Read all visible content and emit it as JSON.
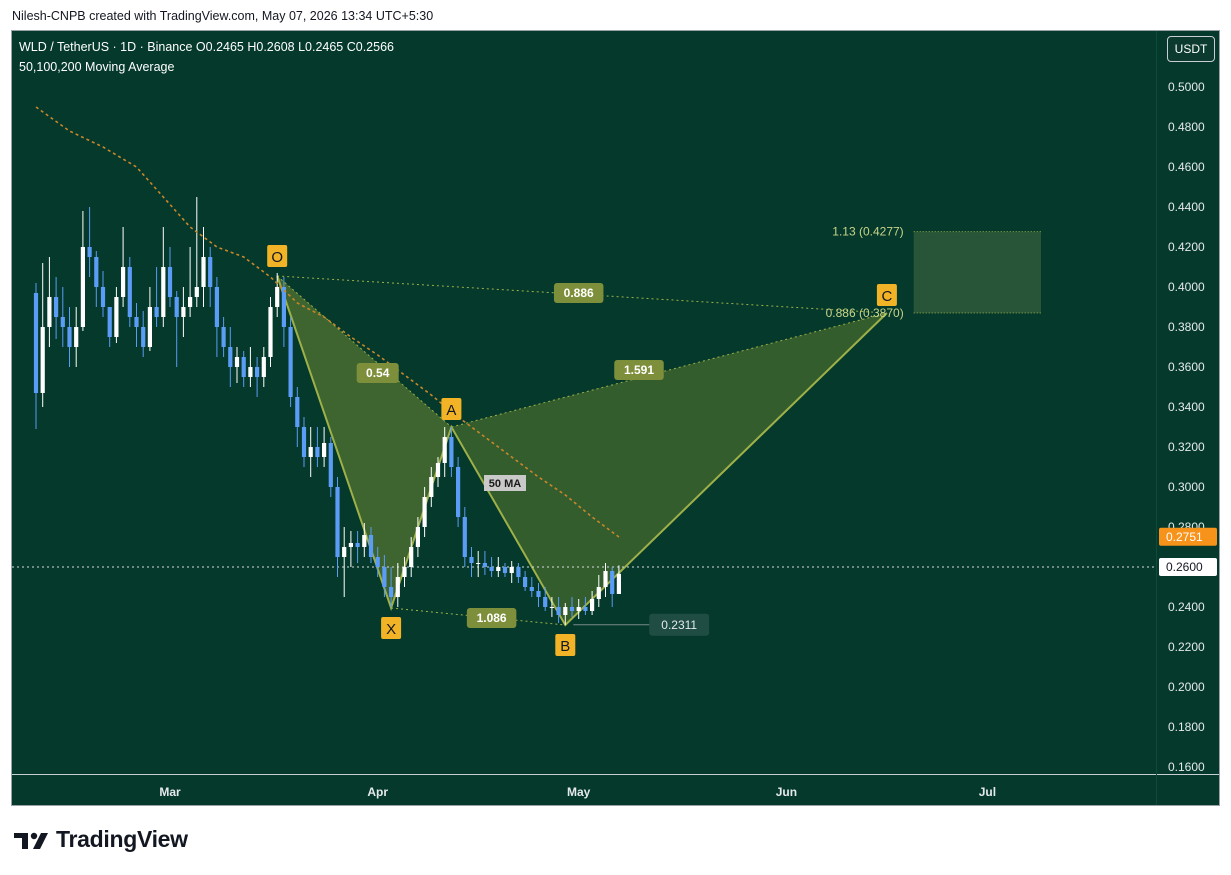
{
  "header": {
    "credit": "Nilesh-CNPB created with TradingView.com, May 07, 2026 13:34 UTC+5:30"
  },
  "legend": {
    "symbol_line": "WLD / TetherUS · 1D · Binance  O0.2465  H0.2608  L0.2465  C0.2566",
    "ma_line": "50,100,200 Moving Average"
  },
  "currency_button": "USDT",
  "brand": {
    "name": "TradingView",
    "logo_icon": "tradingview-logo-icon"
  },
  "colors": {
    "background": "#04392b",
    "up_candle": "#ffffff",
    "down_candle": "#5b9cf6",
    "ma50": "#c8862a",
    "pattern_line": "#9eb048",
    "pattern_fill": "#6f8a33",
    "label_fill": "#7d8f3a",
    "point_label_fill": "#f2b426",
    "price_tag_orange": "#f7931a"
  },
  "chart_data": {
    "type": "candlestick",
    "title": "WLD / TetherUS · 1D · Binance",
    "ylim": [
      0.155,
      0.5
    ],
    "y_ticks": [
      "0.5000",
      "0.4800",
      "0.4600",
      "0.4400",
      "0.4200",
      "0.4000",
      "0.3800",
      "0.3600",
      "0.3400",
      "0.3200",
      "0.3000",
      "0.2800",
      "0.2600",
      "0.2400",
      "0.2200",
      "0.2000",
      "0.1800",
      "0.1600"
    ],
    "x_ticks": [
      {
        "label": "Mar",
        "date": "2026-03-01"
      },
      {
        "label": "Apr",
        "date": "2026-04-01"
      },
      {
        "label": "May",
        "date": "2026-05-01"
      },
      {
        "label": "Jun",
        "date": "2026-06-01"
      },
      {
        "label": "Jul",
        "date": "2026-07-01"
      }
    ],
    "price_tags": [
      {
        "value": 0.2751,
        "label": "0.2751",
        "style": "orange"
      },
      {
        "value": 0.26,
        "label": "0.2600",
        "style": "white"
      }
    ],
    "current_price_line": 0.26,
    "candles_note": "approximate daily OHLC read from the chart",
    "candles": [
      [
        "2026-02-09",
        0.397,
        0.402,
        0.329,
        0.347
      ],
      [
        "2026-02-10",
        0.347,
        0.412,
        0.34,
        0.38
      ],
      [
        "2026-02-11",
        0.38,
        0.415,
        0.37,
        0.395
      ],
      [
        "2026-02-12",
        0.395,
        0.405,
        0.374,
        0.385
      ],
      [
        "2026-02-13",
        0.385,
        0.4,
        0.37,
        0.38
      ],
      [
        "2026-02-14",
        0.38,
        0.39,
        0.36,
        0.37
      ],
      [
        "2026-02-15",
        0.37,
        0.39,
        0.36,
        0.38
      ],
      [
        "2026-02-16",
        0.38,
        0.438,
        0.378,
        0.42
      ],
      [
        "2026-02-17",
        0.42,
        0.44,
        0.405,
        0.415
      ],
      [
        "2026-02-18",
        0.415,
        0.418,
        0.39,
        0.4
      ],
      [
        "2026-02-19",
        0.4,
        0.408,
        0.385,
        0.39
      ],
      [
        "2026-02-20",
        0.39,
        0.39,
        0.37,
        0.375
      ],
      [
        "2026-02-21",
        0.375,
        0.4,
        0.372,
        0.395
      ],
      [
        "2026-02-22",
        0.395,
        0.43,
        0.39,
        0.41
      ],
      [
        "2026-02-23",
        0.41,
        0.415,
        0.38,
        0.385
      ],
      [
        "2026-02-24",
        0.385,
        0.392,
        0.37,
        0.38
      ],
      [
        "2026-02-25",
        0.38,
        0.388,
        0.365,
        0.37
      ],
      [
        "2026-02-26",
        0.37,
        0.4,
        0.368,
        0.39
      ],
      [
        "2026-02-27",
        0.39,
        0.41,
        0.38,
        0.385
      ],
      [
        "2026-02-28",
        0.385,
        0.43,
        0.38,
        0.41
      ],
      [
        "2026-03-01",
        0.41,
        0.42,
        0.39,
        0.395
      ],
      [
        "2026-03-02",
        0.395,
        0.398,
        0.36,
        0.385
      ],
      [
        "2026-03-03",
        0.385,
        0.4,
        0.375,
        0.39
      ],
      [
        "2026-03-04",
        0.39,
        0.42,
        0.385,
        0.395
      ],
      [
        "2026-03-05",
        0.395,
        0.445,
        0.39,
        0.4
      ],
      [
        "2026-03-06",
        0.4,
        0.43,
        0.39,
        0.415
      ],
      [
        "2026-03-07",
        0.415,
        0.42,
        0.39,
        0.4
      ],
      [
        "2026-03-08",
        0.4,
        0.405,
        0.365,
        0.38
      ],
      [
        "2026-03-09",
        0.38,
        0.385,
        0.365,
        0.37
      ],
      [
        "2026-03-10",
        0.37,
        0.38,
        0.35,
        0.36
      ],
      [
        "2026-03-11",
        0.36,
        0.37,
        0.352,
        0.365
      ],
      [
        "2026-03-12",
        0.365,
        0.368,
        0.35,
        0.355
      ],
      [
        "2026-03-13",
        0.355,
        0.37,
        0.35,
        0.36
      ],
      [
        "2026-03-14",
        0.36,
        0.365,
        0.345,
        0.355
      ],
      [
        "2026-03-15",
        0.355,
        0.37,
        0.35,
        0.365
      ],
      [
        "2026-03-16",
        0.365,
        0.395,
        0.36,
        0.39
      ],
      [
        "2026-03-17",
        0.39,
        0.407,
        0.385,
        0.4
      ],
      [
        "2026-03-18",
        0.4,
        0.405,
        0.37,
        0.38
      ],
      [
        "2026-03-19",
        0.38,
        0.385,
        0.34,
        0.345
      ],
      [
        "2026-03-20",
        0.345,
        0.35,
        0.32,
        0.33
      ],
      [
        "2026-03-21",
        0.33,
        0.335,
        0.31,
        0.315
      ],
      [
        "2026-03-22",
        0.315,
        0.33,
        0.305,
        0.32
      ],
      [
        "2026-03-23",
        0.32,
        0.33,
        0.31,
        0.315
      ],
      [
        "2026-03-24",
        0.315,
        0.33,
        0.31,
        0.322
      ],
      [
        "2026-03-25",
        0.322,
        0.325,
        0.295,
        0.3
      ],
      [
        "2026-03-26",
        0.3,
        0.305,
        0.255,
        0.265
      ],
      [
        "2026-03-27",
        0.265,
        0.28,
        0.245,
        0.27
      ],
      [
        "2026-03-28",
        0.27,
        0.278,
        0.26,
        0.272
      ],
      [
        "2026-03-29",
        0.272,
        0.278,
        0.262,
        0.27
      ],
      [
        "2026-03-30",
        0.27,
        0.282,
        0.265,
        0.276
      ],
      [
        "2026-03-31",
        0.276,
        0.28,
        0.262,
        0.265
      ],
      [
        "2026-04-01",
        0.265,
        0.27,
        0.255,
        0.26
      ],
      [
        "2026-04-02",
        0.26,
        0.266,
        0.245,
        0.25
      ],
      [
        "2026-04-03",
        0.25,
        0.26,
        0.24,
        0.245
      ],
      [
        "2026-04-04",
        0.245,
        0.262,
        0.24,
        0.255
      ],
      [
        "2026-04-05",
        0.255,
        0.265,
        0.25,
        0.26
      ],
      [
        "2026-04-06",
        0.26,
        0.275,
        0.255,
        0.27
      ],
      [
        "2026-04-07",
        0.27,
        0.285,
        0.265,
        0.28
      ],
      [
        "2026-04-08",
        0.28,
        0.3,
        0.275,
        0.295
      ],
      [
        "2026-04-09",
        0.295,
        0.31,
        0.29,
        0.305
      ],
      [
        "2026-04-10",
        0.305,
        0.315,
        0.3,
        0.312
      ],
      [
        "2026-04-11",
        0.312,
        0.33,
        0.305,
        0.325
      ],
      [
        "2026-04-12",
        0.325,
        0.33,
        0.305,
        0.31
      ],
      [
        "2026-04-13",
        0.31,
        0.315,
        0.28,
        0.285
      ],
      [
        "2026-04-14",
        0.285,
        0.29,
        0.26,
        0.265
      ],
      [
        "2026-04-15",
        0.265,
        0.27,
        0.255,
        0.262
      ],
      [
        "2026-04-16",
        0.262,
        0.268,
        0.255,
        0.262
      ],
      [
        "2026-04-17",
        0.262,
        0.268,
        0.256,
        0.26
      ],
      [
        "2026-04-18",
        0.26,
        0.265,
        0.255,
        0.258
      ],
      [
        "2026-04-19",
        0.258,
        0.265,
        0.255,
        0.26
      ],
      [
        "2026-04-20",
        0.26,
        0.262,
        0.255,
        0.257
      ],
      [
        "2026-04-21",
        0.257,
        0.263,
        0.252,
        0.26
      ],
      [
        "2026-04-22",
        0.26,
        0.262,
        0.252,
        0.255
      ],
      [
        "2026-04-23",
        0.255,
        0.258,
        0.248,
        0.25
      ],
      [
        "2026-04-24",
        0.25,
        0.255,
        0.245,
        0.248
      ],
      [
        "2026-04-25",
        0.248,
        0.252,
        0.24,
        0.245
      ],
      [
        "2026-04-26",
        0.245,
        0.25,
        0.238,
        0.24
      ],
      [
        "2026-04-27",
        0.24,
        0.245,
        0.235,
        0.24
      ],
      [
        "2026-04-28",
        0.24,
        0.245,
        0.232,
        0.236
      ],
      [
        "2026-04-29",
        0.236,
        0.242,
        0.231,
        0.24
      ],
      [
        "2026-04-30",
        0.24,
        0.245,
        0.235,
        0.238
      ],
      [
        "2026-05-01",
        0.238,
        0.244,
        0.234,
        0.24
      ],
      [
        "2026-05-02",
        0.24,
        0.245,
        0.236,
        0.238
      ],
      [
        "2026-05-03",
        0.238,
        0.248,
        0.236,
        0.244
      ],
      [
        "2026-05-04",
        0.244,
        0.256,
        0.24,
        0.25
      ],
      [
        "2026-05-05",
        0.25,
        0.262,
        0.245,
        0.258
      ],
      [
        "2026-05-06",
        0.258,
        0.26,
        0.24,
        0.2465
      ],
      [
        "2026-05-07",
        0.2465,
        0.2608,
        0.2465,
        0.2566
      ]
    ],
    "ma50": [
      [
        "2026-02-09",
        0.49
      ],
      [
        "2026-02-14",
        0.478
      ],
      [
        "2026-02-19",
        0.47
      ],
      [
        "2026-02-24",
        0.46
      ],
      [
        "2026-02-28",
        0.445
      ],
      [
        "2026-03-04",
        0.43
      ],
      [
        "2026-03-08",
        0.42
      ],
      [
        "2026-03-12",
        0.415
      ],
      [
        "2026-03-16",
        0.405
      ],
      [
        "2026-03-20",
        0.392
      ],
      [
        "2026-03-24",
        0.385
      ],
      [
        "2026-03-28",
        0.375
      ],
      [
        "2026-04-01",
        0.366
      ],
      [
        "2026-04-05",
        0.356
      ],
      [
        "2026-04-09",
        0.346
      ],
      [
        "2026-04-13",
        0.335
      ],
      [
        "2026-04-17",
        0.325
      ],
      [
        "2026-04-21",
        0.315
      ],
      [
        "2026-04-25",
        0.305
      ],
      [
        "2026-04-29",
        0.296
      ],
      [
        "2026-05-03",
        0.285
      ],
      [
        "2026-05-07",
        0.275
      ]
    ],
    "ma50_label": "50 MA",
    "pattern": {
      "points": [
        {
          "label": "O",
          "date": "2026-03-17",
          "price": 0.4055
        },
        {
          "label": "X",
          "date": "2026-04-03",
          "price": 0.2395
        },
        {
          "label": "A",
          "date": "2026-04-12",
          "price": 0.33
        },
        {
          "label": "B",
          "date": "2026-04-29",
          "price": 0.231
        },
        {
          "label": "C",
          "date": "2026-06-16",
          "price": 0.387
        }
      ],
      "ratios": [
        {
          "text": "0.54",
          "date": "2026-04-01",
          "price": 0.357
        },
        {
          "text": "1.086",
          "date": "2026-04-18",
          "price": 0.2345
        },
        {
          "text": "0.886",
          "date": "2026-05-01",
          "price": 0.397
        },
        {
          "text": "1.591",
          "date": "2026-05-10",
          "price": 0.3585
        }
      ],
      "b_level": {
        "value": 0.2311,
        "label": "0.2311"
      },
      "prz": {
        "from_date": "2026-06-20",
        "to_date": "2026-07-09",
        "top": 0.4277,
        "bottom": 0.387,
        "top_label": "1.13 (0.4277)",
        "bottom_label": "0.886 (0.3870)"
      }
    }
  }
}
